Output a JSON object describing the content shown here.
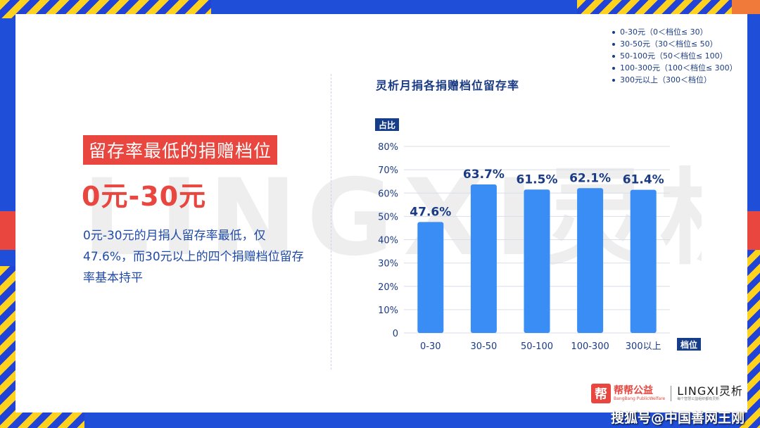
{
  "slide": {
    "headline": "留存率最低的捐赠档位",
    "big_value": "0元-30元",
    "description": "0元-30元的月捐人留存率最低，仅47.6%，而30元以上的四个捐赠档位留存率基本持平",
    "watermark": "LINGXI灵析"
  },
  "legend": {
    "items": [
      "0-30元（0＜档位≤ 30）",
      "30-50元（30＜档位≤ 50）",
      "50-100元（50＜档位≤ 100）",
      "100-300元（100＜档位≤ 300）",
      "300元以上（300＜档位）"
    ]
  },
  "logos": {
    "bangbang_mark": "帮",
    "bangbang_cn": "帮帮公益",
    "bangbang_en": "BangBang PublicWelfare",
    "lingxi_main": "LINGXI灵析",
    "lingxi_sub": "每个智慧公益组织都有灵析"
  },
  "source_watermark": "搜狐号@中国善网王刚",
  "colors": {
    "bar": "#3a8df5",
    "accent_red": "#e8463e",
    "frame_blue": "#1f4fd8",
    "frame_yellow": "#ffd21f",
    "text_blue": "#1a3b84"
  },
  "chart_data": {
    "type": "bar",
    "title": "灵析月捐各捐赠档位留存率",
    "ylabel": "占比",
    "xlabel": "档位",
    "categories": [
      "0-30",
      "30-50",
      "50-100",
      "100-300",
      "300以上"
    ],
    "values": [
      47.6,
      63.7,
      61.5,
      62.1,
      61.4
    ],
    "value_labels": [
      "47.6%",
      "63.7%",
      "61.5%",
      "62.1%",
      "61.4%"
    ],
    "yticks": [
      "0",
      "10%",
      "20%",
      "30%",
      "40%",
      "50%",
      "60%",
      "70%",
      "80%"
    ],
    "ylim": [
      0,
      80
    ],
    "grid": true
  }
}
